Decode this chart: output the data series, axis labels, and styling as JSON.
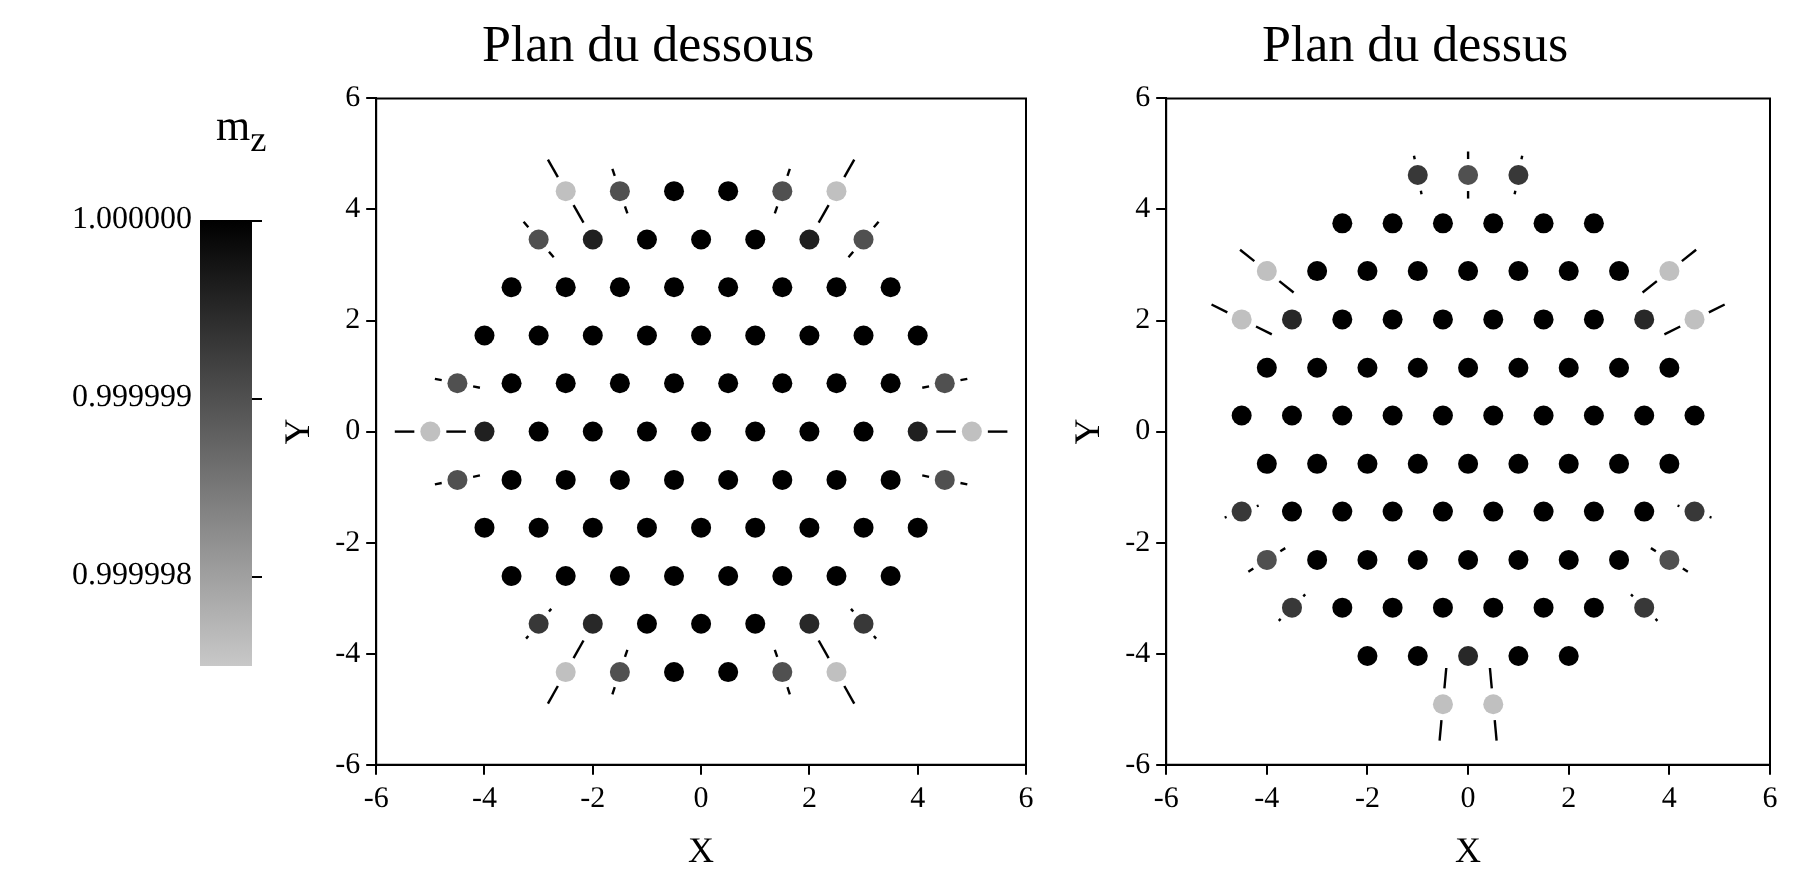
{
  "chart_data": [
    {
      "type": "scatter",
      "title": "Plan du dessous",
      "xlabel": "X",
      "ylabel": "Y",
      "xlim": [
        -6,
        6
      ],
      "ylim": [
        -6,
        6
      ],
      "xticks": [
        -6,
        -4,
        -2,
        0,
        2,
        4,
        6
      ],
      "yticks": [
        -6,
        -4,
        -2,
        0,
        2,
        4,
        6
      ],
      "marker": "circle",
      "clabel": "m$_{z}$",
      "clim": [
        0.9999975,
        1
      ],
      "cticks": [
        {
          "value": 1,
          "label": "1.000000"
        },
        {
          "value": 0.999999,
          "label": "0.999999"
        },
        {
          "value": 0.999998,
          "label": "0.999998"
        }
      ],
      "x": [
        -2.5,
        -1.5,
        -0.5,
        0.5,
        1.5,
        2.5,
        -3,
        -2,
        -1,
        0,
        1,
        2,
        3,
        -3.5,
        -2.5,
        -1.5,
        -0.5,
        0.5,
        1.5,
        2.5,
        3.5,
        -4,
        -3,
        -2,
        -1,
        0,
        1,
        2,
        3,
        4,
        -4.5,
        -3.5,
        -2.5,
        -1.5,
        -0.5,
        0.5,
        1.5,
        2.5,
        3.5,
        4.5,
        -5,
        -4,
        -3,
        -2,
        -1,
        0,
        1,
        2,
        3,
        4,
        5,
        -4.5,
        -3.5,
        -2.5,
        -1.5,
        -0.5,
        0.5,
        1.5,
        2.5,
        3.5,
        4.5,
        -4,
        -3,
        -2,
        -1,
        0,
        1,
        2,
        3,
        4,
        -3.5,
        -2.5,
        -1.5,
        -0.5,
        0.5,
        1.5,
        2.5,
        3.5,
        -3,
        -2,
        -1,
        0,
        1,
        2,
        3,
        -2.5,
        -1.5,
        -0.5,
        0.5,
        1.5,
        2.5
      ],
      "values": [
        4.33,
        4.33,
        4.33,
        4.33,
        4.33,
        4.33,
        3.46,
        3.46,
        3.46,
        3.46,
        3.46,
        3.46,
        3.46,
        2.6,
        2.6,
        2.6,
        2.6,
        2.6,
        2.6,
        2.6,
        2.6,
        1.73,
        1.73,
        1.73,
        1.73,
        1.73,
        1.73,
        1.73,
        1.73,
        1.73,
        0.87,
        0.87,
        0.87,
        0.87,
        0.87,
        0.87,
        0.87,
        0.87,
        0.87,
        0.87,
        0,
        0,
        0,
        0,
        0,
        0,
        0,
        0,
        0,
        0,
        0,
        -0.87,
        -0.87,
        -0.87,
        -0.87,
        -0.87,
        -0.87,
        -0.87,
        -0.87,
        -0.87,
        -0.87,
        -1.73,
        -1.73,
        -1.73,
        -1.73,
        -1.73,
        -1.73,
        -1.73,
        -1.73,
        -1.73,
        -2.6,
        -2.6,
        -2.6,
        -2.6,
        -2.6,
        -2.6,
        -2.6,
        -2.6,
        -3.46,
        -3.46,
        -3.46,
        -3.46,
        -3.46,
        -3.46,
        -3.46,
        -4.33,
        -4.33,
        -4.33,
        -4.33,
        -4.33,
        -4.33
      ],
      "cvalues": [
        0.9999976,
        0.999999,
        1,
        1,
        0.999999,
        0.9999976,
        0.999999,
        0.9999996,
        1,
        1,
        1,
        0.9999996,
        0.999999,
        1,
        1,
        1,
        1,
        1,
        1,
        1,
        1,
        1,
        1,
        1,
        1,
        1,
        1,
        1,
        1,
        1,
        0.999999,
        1,
        1,
        1,
        1,
        1,
        1,
        1,
        1,
        0.999999,
        0.9999976,
        0.9999996,
        1,
        1,
        1,
        1,
        1,
        1,
        1,
        0.9999996,
        0.9999976,
        0.999999,
        1,
        1,
        1,
        1,
        1,
        1,
        1,
        1,
        0.999999,
        1,
        1,
        1,
        1,
        1,
        1,
        1,
        1,
        1,
        1,
        1,
        1,
        1,
        1,
        1,
        1,
        1,
        0.9999993,
        0.9999995,
        1,
        1,
        1,
        0.9999995,
        0.9999993,
        0.9999976,
        0.999999,
        1,
        1,
        0.999999,
        0.9999976
      ]
    },
    {
      "type": "scatter",
      "title": "Plan du dessus",
      "xlabel": "X",
      "ylabel": "Y",
      "xlim": [
        -6,
        6
      ],
      "ylim": [
        -6,
        6
      ],
      "xticks": [
        -6,
        -4,
        -2,
        0,
        2,
        4,
        6
      ],
      "yticks": [
        -6,
        -4,
        -2,
        0,
        2,
        4,
        6
      ],
      "marker": "circle",
      "x": [
        -1,
        0,
        1,
        -2.5,
        -1.5,
        -0.5,
        0.5,
        1.5,
        2.5,
        -4,
        -3,
        -2,
        -1,
        0,
        1,
        2,
        3,
        4,
        -4.5,
        -3.5,
        -2.5,
        -1.5,
        -0.5,
        0.5,
        1.5,
        2.5,
        3.5,
        4.5,
        -4,
        -3,
        -2,
        -1,
        0,
        1,
        2,
        3,
        4,
        -4.5,
        -3.5,
        -2.5,
        -1.5,
        -0.5,
        0.5,
        1.5,
        2.5,
        3.5,
        4.5,
        -4,
        -3,
        -2,
        -1,
        0,
        1,
        2,
        3,
        4,
        -4.5,
        -3.5,
        -2.5,
        -1.5,
        -0.5,
        0.5,
        1.5,
        2.5,
        3.5,
        4.5,
        -4,
        -3,
        -2,
        -1,
        0,
        1,
        2,
        3,
        4,
        -3.5,
        -2.5,
        -1.5,
        -0.5,
        0.5,
        1.5,
        2.5,
        3.5,
        -2,
        -1,
        0,
        1,
        2,
        -0.5,
        0.5
      ],
      "values": [
        4.62,
        4.62,
        4.62,
        3.75,
        3.75,
        3.75,
        3.75,
        3.75,
        3.75,
        2.89,
        2.89,
        2.89,
        2.89,
        2.89,
        2.89,
        2.89,
        2.89,
        2.89,
        2.02,
        2.02,
        2.02,
        2.02,
        2.02,
        2.02,
        2.02,
        2.02,
        2.02,
        2.02,
        1.15,
        1.15,
        1.15,
        1.15,
        1.15,
        1.15,
        1.15,
        1.15,
        1.15,
        0.29,
        0.29,
        0.29,
        0.29,
        0.29,
        0.29,
        0.29,
        0.29,
        0.29,
        0.29,
        -0.58,
        -0.58,
        -0.58,
        -0.58,
        -0.58,
        -0.58,
        -0.58,
        -0.58,
        -0.58,
        -1.44,
        -1.44,
        -1.44,
        -1.44,
        -1.44,
        -1.44,
        -1.44,
        -1.44,
        -1.44,
        -1.44,
        -2.31,
        -2.31,
        -2.31,
        -2.31,
        -2.31,
        -2.31,
        -2.31,
        -2.31,
        -2.31,
        -3.17,
        -3.17,
        -3.17,
        -3.17,
        -3.17,
        -3.17,
        -3.17,
        -3.17,
        -4.04,
        -4.04,
        -4.04,
        -4.04,
        -4.04,
        -4.91,
        -4.91
      ],
      "colors": [
        "#383838",
        "#505050",
        "#383838",
        "#000000",
        "#000000",
        "#000000",
        "#000000",
        "#000000",
        "#000000",
        "#c0c0c0",
        "#000000",
        "#000000",
        "#000000",
        "#000000",
        "#000000",
        "#000000",
        "#000000",
        "#c0c0c0",
        "#c0c0c0",
        "#282828",
        "#000000",
        "#000000",
        "#000000",
        "#000000",
        "#000000",
        "#000000",
        "#282828",
        "#c0c0c0",
        "#000000",
        "#000000",
        "#000000",
        "#000000",
        "#000000",
        "#000000",
        "#000000",
        "#000000",
        "#000000",
        "#000000",
        "#000000",
        "#000000",
        "#000000",
        "#000000",
        "#000000",
        "#000000",
        "#000000",
        "#000000",
        "#000000",
        "#000000",
        "#000000",
        "#000000",
        "#000000",
        "#000000",
        "#000000",
        "#000000",
        "#000000",
        "#000000",
        "#383838",
        "#000000",
        "#000000",
        "#000000",
        "#000000",
        "#000000",
        "#000000",
        "#000000",
        "#000000",
        "#383838",
        "#505050",
        "#000000",
        "#000000",
        "#000000",
        "#000000",
        "#000000",
        "#000000",
        "#000000",
        "#505050",
        "#383838",
        "#000000",
        "#000000",
        "#000000",
        "#000000",
        "#000000",
        "#000000",
        "#383838",
        "#000000",
        "#000000",
        "#282828",
        "#000000",
        "#000000",
        "#c0c0c0",
        "#c0c0c0"
      ]
    }
  ]
}
